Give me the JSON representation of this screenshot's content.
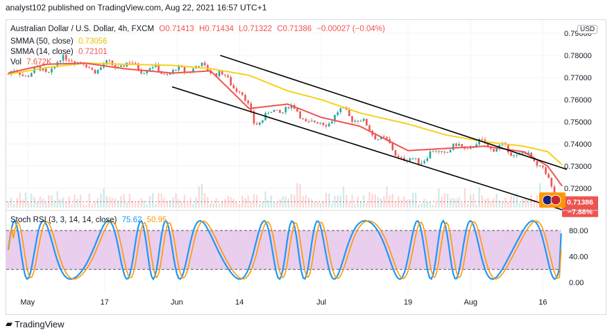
{
  "attribution": "analyst102 published on TradingView.com, Aug 22, 2021 16:57 UTC+1",
  "currency_button": "USD",
  "footer": {
    "logo_icon": "tradingview-logo-icon",
    "brand": "TradingView"
  },
  "main_legend": {
    "symbol": "Australian Dollar / U.S. Dollar, 4h, FXCM",
    "open": "O0.71413",
    "high": "H0.71434",
    "low": "L0.71322",
    "close": "C0.71386",
    "change": "−0.00027 (−0.04%)",
    "smma50_label": "SMMA (50, close)",
    "smma50_value": "0.73056",
    "smma14_label": "SMMA (14, close)",
    "smma14_value": "0.72101",
    "vol_label": "Vol",
    "vol_value": "7.672K"
  },
  "stoch_legend": {
    "label": "Stoch RSI (3, 3, 14, 14, close)",
    "k_value": "75.62",
    "d_value": "50.95"
  },
  "price_badge": {
    "value": "0.71386",
    "change": "−7.88%"
  },
  "colors": {
    "candle_up": "#26a69a",
    "candle_down": "#ef5350",
    "smma50": "#f5d11b",
    "smma14": "#ef5350",
    "channel": "#000000",
    "stoch_k": "#2196f3",
    "stoch_d": "#ff9800",
    "stoch_band": "#e1bee7"
  },
  "chart_data": [
    {
      "type": "line",
      "title": "Australian Dollar / U.S. Dollar, 4h, FXCM",
      "x_ticks": [
        "May",
        "17",
        "Jun",
        "14",
        "Jul",
        "19",
        "Aug",
        "16"
      ],
      "y_ticks": [
        0.72,
        0.73,
        0.74,
        0.75,
        0.76,
        0.77,
        0.78,
        0.79
      ],
      "ylim": [
        0.7085,
        0.7905
      ],
      "current_price": 0.71386,
      "series": [
        {
          "name": "SMMA (50, close)",
          "x": [
            "Apr 27",
            "May 5",
            "May 13",
            "May 21",
            "May 31",
            "Jun 8",
            "Jun 16",
            "Jun 24",
            "Jul 1",
            "Jul 9",
            "Jul 19",
            "Jul 27",
            "Aug 4",
            "Aug 12",
            "Aug 17",
            "Aug 20"
          ],
          "values": [
            0.7715,
            0.7745,
            0.7765,
            0.776,
            0.7755,
            0.774,
            0.771,
            0.764,
            0.76,
            0.754,
            0.749,
            0.744,
            0.741,
            0.739,
            0.7365,
            0.7306
          ]
        },
        {
          "name": "SMMA (14, close)",
          "x": [
            "Apr 27",
            "May 5",
            "May 13",
            "May 21",
            "May 31",
            "Jun 8",
            "Jun 16",
            "Jun 24",
            "Jul 1",
            "Jul 9",
            "Jul 19",
            "Jul 27",
            "Aug 4",
            "Aug 12",
            "Aug 17",
            "Aug 20"
          ],
          "values": [
            0.772,
            0.776,
            0.7765,
            0.774,
            0.772,
            0.773,
            0.756,
            0.758,
            0.752,
            0.748,
            0.737,
            0.738,
            0.739,
            0.7365,
            0.73,
            0.721
          ]
        },
        {
          "name": "Close",
          "x": [
            "Apr 27",
            "May 5",
            "May 10",
            "May 13",
            "May 21",
            "May 31",
            "Jun 4",
            "Jun 8",
            "Jun 14",
            "Jun 17",
            "Jun 24",
            "Jun 30",
            "Jul 6",
            "Jul 12",
            "Jul 19",
            "Jul 27",
            "Aug 4",
            "Aug 12",
            "Aug 16",
            "Aug 18",
            "Aug 20"
          ],
          "values": [
            0.7715,
            0.773,
            0.78,
            0.774,
            0.776,
            0.772,
            0.7745,
            0.774,
            0.765,
            0.75,
            0.757,
            0.748,
            0.755,
            0.745,
            0.7315,
            0.7375,
            0.74,
            0.735,
            0.73,
            0.7175,
            0.71386
          ]
        },
        {
          "name": "Channel upper",
          "x": [
            "Jun 10",
            "Aug 21"
          ],
          "values": [
            0.78,
            0.7285
          ]
        },
        {
          "name": "Channel lower",
          "x": [
            "May 31",
            "Aug 21"
          ],
          "values": [
            0.7658,
            0.7096
          ]
        }
      ]
    },
    {
      "type": "line",
      "title": "Stoch RSI (3, 3, 14, 14, close)",
      "y_ticks": [
        0,
        40,
        80
      ],
      "ylim": [
        -10,
        100
      ],
      "band": [
        20,
        80
      ],
      "series": [
        {
          "name": "K",
          "last": 75.62
        },
        {
          "name": "D",
          "last": 50.95
        }
      ]
    }
  ]
}
